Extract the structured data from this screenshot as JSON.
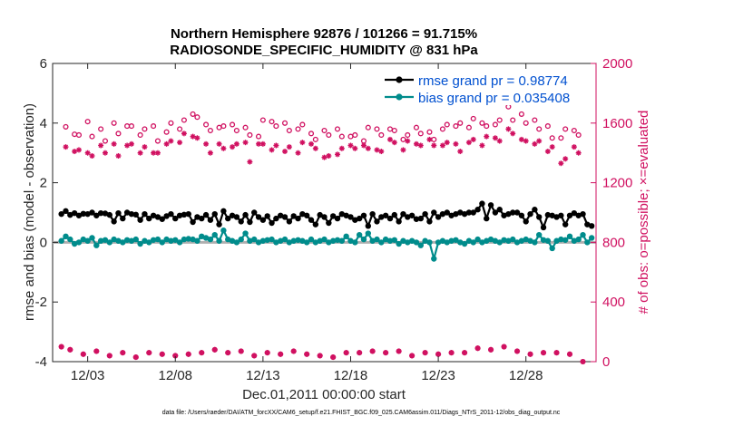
{
  "chart_data": {
    "type": "line",
    "title": "Northern Hemisphere 92876 / 101266 = 91.715%",
    "subtitle": "RADIOSONDE_SPECIFIC_HUMIDITY @ 831 hPa",
    "xlabel": "Dec.01,2011 00:00:00 start",
    "ylabel": "rmse and bias (model - observation)",
    "ylabel_right": "# of obs: o=possible; ×=evaluated",
    "xlim": [
      0,
      62
    ],
    "ylim": [
      -4,
      6
    ],
    "ylim_right": [
      0,
      2000
    ],
    "x_ticks": [
      {
        "x": 4,
        "label": "12/03"
      },
      {
        "x": 14,
        "label": "12/08"
      },
      {
        "x": 24,
        "label": "12/13"
      },
      {
        "x": 34,
        "label": "12/18"
      },
      {
        "x": 44,
        "label": "12/23"
      },
      {
        "x": 54,
        "label": "12/28"
      }
    ],
    "y_ticks_left": [
      -4,
      -2,
      0,
      2,
      4,
      6
    ],
    "y_ticks_right": [
      0,
      400,
      800,
      1200,
      1600,
      2000
    ],
    "grid": false,
    "legend_position": "top-right",
    "colors": {
      "rmse": "#000000",
      "bias": "#008c8c",
      "obs": "#d01060",
      "zero_line": "#b0b0b0",
      "legend_text": "#0050d0"
    },
    "series": [
      {
        "name": "rmse grand pr = 0.98774",
        "axis": "left",
        "values": [
          0.95,
          1.05,
          0.92,
          0.98,
          0.9,
          0.96,
          0.95,
          1.0,
          0.9,
          0.98,
          0.97,
          0.92,
          0.7,
          0.98,
          0.8,
          1.0,
          0.95,
          0.93,
          0.75,
          0.95,
          0.8,
          0.9,
          0.85,
          0.78,
          0.88,
          0.95,
          0.8,
          0.9,
          0.93,
          0.95,
          0.68,
          0.85,
          0.8,
          0.92,
          0.75,
          0.95,
          0.6,
          1.05,
          0.8,
          0.9,
          0.85,
          0.7,
          0.92,
          0.68,
          1.0,
          0.85,
          0.75,
          0.88,
          0.65,
          0.8,
          0.9,
          0.85,
          0.7,
          0.88,
          0.8,
          0.95,
          0.9,
          0.75,
          0.6,
          0.92,
          0.85,
          0.65,
          0.88,
          0.8,
          0.95,
          0.9,
          0.85,
          0.75,
          0.8,
          0.9,
          0.55,
          0.95,
          0.7,
          0.85,
          0.9,
          0.8,
          0.92,
          0.7,
          0.95,
          0.85,
          0.9,
          0.78,
          0.8,
          0.95,
          0.7,
          1.0,
          0.85,
          0.95,
          1.0,
          0.9,
          0.95,
          1.0,
          0.95,
          1.0,
          1.0,
          1.1,
          1.3,
          0.8,
          1.25,
          1.0,
          1.1,
          0.9,
          0.95,
          1.0,
          1.0,
          0.9,
          0.7,
          0.95,
          1.1,
          0.85,
          0.5,
          0.92,
          0.9,
          0.85,
          0.9,
          0.6,
          0.9,
          0.98,
          0.9,
          0.95,
          0.6,
          0.55
        ]
      },
      {
        "name": "bias grand pr = 0.035408",
        "axis": "left",
        "values": [
          0.05,
          0.2,
          0.1,
          -0.05,
          0.0,
          0.1,
          0.05,
          0.15,
          -0.1,
          0.05,
          0.08,
          0.0,
          0.1,
          0.05,
          0.0,
          0.08,
          0.05,
          0.1,
          -0.05,
          0.05,
          0.0,
          0.08,
          0.1,
          0.0,
          0.1,
          0.05,
          0.08,
          0.0,
          0.1,
          0.12,
          0.1,
          0.05,
          0.2,
          0.15,
          0.1,
          0.25,
          0.05,
          0.4,
          0.1,
          0.05,
          0.0,
          0.1,
          0.3,
          0.05,
          0.1,
          0.0,
          0.05,
          0.08,
          0.1,
          0.0,
          0.05,
          0.1,
          0.0,
          0.05,
          0.08,
          0.05,
          0.0,
          0.1,
          0.0,
          0.05,
          0.1,
          0.0,
          0.05,
          0.08,
          0.05,
          0.2,
          0.05,
          0.0,
          0.25,
          0.1,
          0.3,
          0.05,
          0.1,
          0.0,
          0.1,
          0.05,
          0.08,
          -0.05,
          0.05,
          0.0,
          0.05,
          0.0,
          -0.1,
          0.05,
          0.0,
          -0.55,
          0.0,
          0.05,
          0.0,
          0.05,
          0.08,
          0.0,
          -0.05,
          0.05,
          0.0,
          0.1,
          0.0,
          0.05,
          0.1,
          0.05,
          0.0,
          0.08,
          0.05,
          0.1,
          0.0,
          0.05,
          0.1,
          0.05,
          0.0,
          0.25,
          0.08,
          0.05,
          -0.2,
          0.05,
          0.1,
          0.08,
          0.2,
          0.05,
          0.1,
          0.25,
          0.0,
          0.15
        ]
      },
      {
        "name": "possible",
        "axis": "right",
        "values": [
          100,
          1575,
          80,
          1525,
          1520,
          50,
          1610,
          1510,
          70,
          1560,
          1480,
          40,
          1600,
          1530,
          60,
          1580,
          1580,
          30,
          1520,
          1560,
          60,
          1580,
          1480,
          50,
          1540,
          1600,
          40,
          1560,
          1620,
          50,
          1660,
          1640,
          60,
          1590,
          1550,
          80,
          1570,
          1580,
          60,
          1590,
          1550,
          70,
          1570,
          1520,
          40,
          1510,
          1620,
          60,
          1610,
          1580,
          50,
          1600,
          1550,
          70,
          1560,
          1590,
          50,
          1530,
          1490,
          40,
          1550,
          1520,
          30,
          1560,
          1510,
          60,
          1510,
          1520,
          60,
          1480,
          1570,
          70,
          1560,
          1520,
          60,
          1560,
          1550,
          70,
          1490,
          1520,
          40,
          1570,
          1530,
          60,
          1540,
          1490,
          50,
          1560,
          1590,
          60,
          1580,
          1600,
          60,
          1570,
          1630,
          90,
          1600,
          1580,
          80,
          1590,
          1620,
          100,
          1710,
          1620,
          70,
          1660,
          1600,
          50,
          1620,
          1560,
          60,
          1580,
          1500,
          60,
          1500,
          1560,
          50,
          1550,
          1520,
          0
        ]
      },
      {
        "name": "evaluated",
        "axis": "right",
        "values": [
          100,
          1440,
          80,
          1410,
          1420,
          50,
          1400,
          1380,
          70,
          1450,
          1400,
          40,
          1460,
          1380,
          60,
          1450,
          1460,
          30,
          1400,
          1440,
          60,
          1400,
          1400,
          50,
          1460,
          1480,
          40,
          1470,
          1530,
          50,
          1510,
          1500,
          60,
          1460,
          1400,
          80,
          1460,
          1430,
          60,
          1440,
          1460,
          70,
          1470,
          1340,
          40,
          1460,
          1460,
          60,
          1420,
          1450,
          50,
          1410,
          1440,
          70,
          1400,
          1470,
          50,
          1460,
          1430,
          40,
          1370,
          1380,
          30,
          1390,
          1430,
          60,
          1450,
          1430,
          60,
          1450,
          1430,
          70,
          1420,
          1410,
          60,
          1490,
          1470,
          70,
          1420,
          1480,
          40,
          1460,
          1450,
          60,
          1490,
          1450,
          50,
          1450,
          1470,
          60,
          1460,
          1410,
          60,
          1470,
          1490,
          90,
          1450,
          1510,
          80,
          1500,
          1480,
          100,
          1560,
          1530,
          70,
          1490,
          1480,
          50,
          1460,
          1480,
          60,
          1410,
          1440,
          60,
          1330,
          1360,
          50,
          1440,
          1400,
          0
        ]
      }
    ],
    "footnote": "data file: /Users/raeder/DAI/ATM_forcXX/CAM6_setup/f.e21.FHIST_BGC.f09_025.CAM6assim.011/Diags_NTrS_2011-12/obs_diag_output.nc"
  }
}
